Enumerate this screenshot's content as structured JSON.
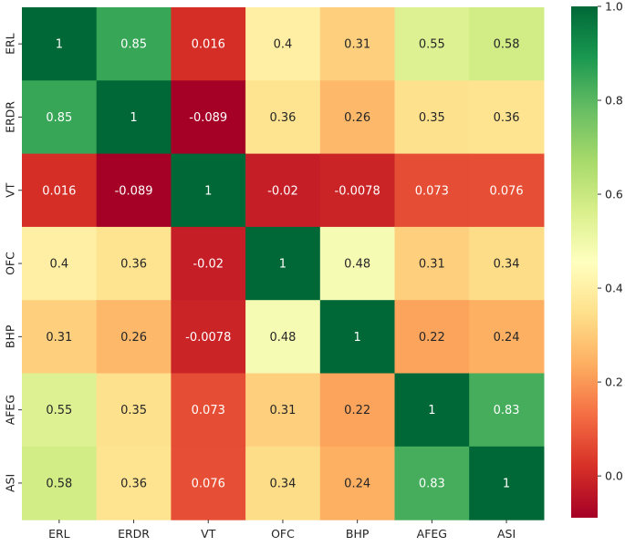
{
  "chart_data": {
    "type": "heatmap",
    "title": "",
    "xlabel": "",
    "ylabel": "",
    "categories_x": [
      "ERL",
      "ERDR",
      "VT",
      "OFC",
      "BHP",
      "AFEG",
      "ASI"
    ],
    "categories_y": [
      "ERL",
      "ERDR",
      "VT",
      "OFC",
      "BHP",
      "AFEG",
      "ASI"
    ],
    "values": [
      [
        1,
        0.85,
        0.016,
        0.4,
        0.31,
        0.55,
        0.58
      ],
      [
        0.85,
        1,
        -0.089,
        0.36,
        0.26,
        0.35,
        0.36
      ],
      [
        0.016,
        -0.089,
        1,
        -0.02,
        -0.0078,
        0.073,
        0.076
      ],
      [
        0.4,
        0.36,
        -0.02,
        1,
        0.48,
        0.31,
        0.34
      ],
      [
        0.31,
        0.26,
        -0.0078,
        0.48,
        1,
        0.22,
        0.24
      ],
      [
        0.55,
        0.35,
        0.073,
        0.31,
        0.22,
        1,
        0.83
      ],
      [
        0.58,
        0.36,
        0.076,
        0.34,
        0.24,
        0.83,
        1
      ]
    ],
    "value_labels": [
      [
        "1",
        "0.85",
        "0.016",
        "0.4",
        "0.31",
        "0.55",
        "0.58"
      ],
      [
        "0.85",
        "1",
        "-0.089",
        "0.36",
        "0.26",
        "0.35",
        "0.36"
      ],
      [
        "0.016",
        "-0.089",
        "1",
        "-0.02",
        "-0.0078",
        "0.073",
        "0.076"
      ],
      [
        "0.4",
        "0.36",
        "-0.02",
        "1",
        "0.48",
        "0.31",
        "0.34"
      ],
      [
        "0.31",
        "0.26",
        "-0.0078",
        "0.48",
        "1",
        "0.22",
        "0.24"
      ],
      [
        "0.55",
        "0.35",
        "0.073",
        "0.31",
        "0.22",
        "1",
        "0.83"
      ],
      [
        "0.58",
        "0.36",
        "0.076",
        "0.34",
        "0.24",
        "0.83",
        "1"
      ]
    ],
    "colormap": "RdYlGn",
    "colorbar": {
      "range": [
        -0.089,
        1.0
      ],
      "ticks": [
        0.0,
        0.2,
        0.4,
        0.6,
        0.8,
        1.0
      ],
      "tick_labels": [
        "0.0",
        "0.2",
        "0.4",
        "0.6",
        "0.8",
        "1.0"
      ]
    },
    "grid": false,
    "legend_position": "right"
  }
}
